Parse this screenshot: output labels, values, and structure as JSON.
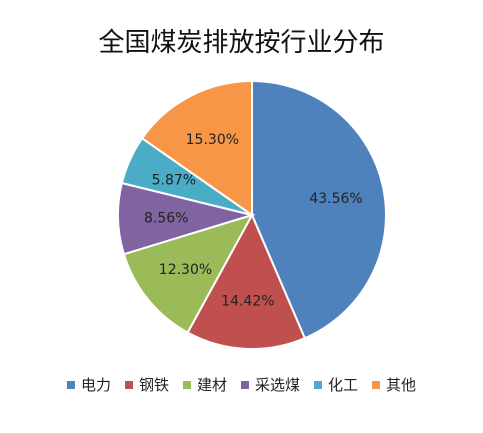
{
  "chart_data": {
    "type": "pie",
    "title": "全国煤炭排放按行业分布",
    "categories": [
      "电力",
      "钢铁",
      "建材",
      "采选煤",
      "化工",
      "其他"
    ],
    "values": [
      43.56,
      14.42,
      12.3,
      8.56,
      5.87,
      15.3
    ],
    "value_labels": [
      "43.56%",
      "14.42%",
      "12.30%",
      "8.56%",
      "5.87%",
      "15.30%"
    ],
    "colors": [
      "#4f81bd",
      "#c0504d",
      "#9bbb59",
      "#8064a2",
      "#4bacc6",
      "#f79646"
    ],
    "legend_position": "bottom"
  }
}
